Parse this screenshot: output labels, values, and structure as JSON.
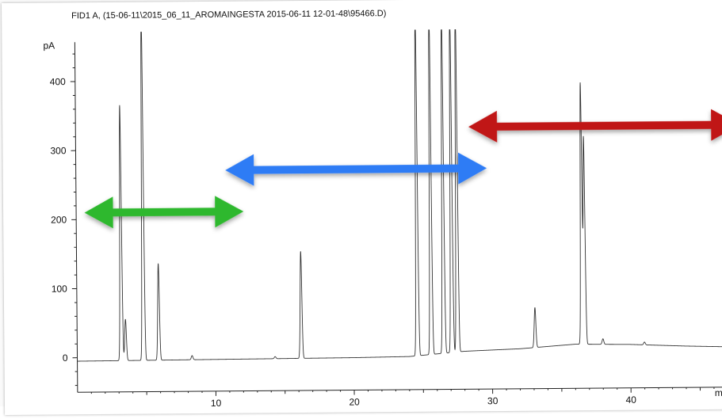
{
  "chart_data": {
    "type": "line",
    "title": "FID1 A,  (15-06-11\\2015_06_11_AROMAINGESTA 2015-06-11 12-01-48\\95466.D)",
    "ylabel": "pA",
    "xlabel": "mi",
    "xlim": [
      0,
      48
    ],
    "ylim": [
      -50,
      480
    ],
    "x_ticks": [
      10,
      20,
      30,
      40
    ],
    "y_ticks": [
      0,
      100,
      200,
      300,
      400
    ],
    "grid": false,
    "series": [
      {
        "baseline": [
          [
            0,
            -5
          ],
          [
            10,
            -4
          ],
          [
            20,
            -3
          ],
          [
            24,
            -2
          ],
          [
            28,
            5
          ],
          [
            32,
            8
          ],
          [
            36,
            14
          ],
          [
            40,
            13
          ],
          [
            44,
            10
          ],
          [
            48,
            8
          ]
        ],
        "peaks": [
          {
            "rt": 3.2,
            "height": 370
          },
          {
            "rt": 3.5,
            "height": 60
          },
          {
            "rt": 4.8,
            "height": 520
          },
          {
            "rt": 5.9,
            "height": 140
          },
          {
            "rt": 8.3,
            "height": 6
          },
          {
            "rt": 14.3,
            "height": 3
          },
          {
            "rt": 16.2,
            "height": 155
          },
          {
            "rt": 24.6,
            "height": 520
          },
          {
            "rt": 25.6,
            "height": 520
          },
          {
            "rt": 26.5,
            "height": 520
          },
          {
            "rt": 27.1,
            "height": 520
          },
          {
            "rt": 27.5,
            "height": 520
          },
          {
            "rt": 33.1,
            "height": 58
          },
          {
            "rt": 36.5,
            "height": 378
          },
          {
            "rt": 36.7,
            "height": 300
          },
          {
            "rt": 38.0,
            "height": 8
          },
          {
            "rt": 41.0,
            "height": 4
          }
        ]
      }
    ],
    "annotations": [
      {
        "type": "double-arrow",
        "color": "#2db82d",
        "x": [
          0.6,
          12.1
        ],
        "y": 210
      },
      {
        "type": "double-arrow",
        "color": "#2f7cf5",
        "x": [
          10.8,
          29.7
        ],
        "y": 270
      },
      {
        "type": "double-arrow",
        "color": "#c01818",
        "x": [
          28.4,
          48
        ],
        "y": 330
      }
    ]
  }
}
